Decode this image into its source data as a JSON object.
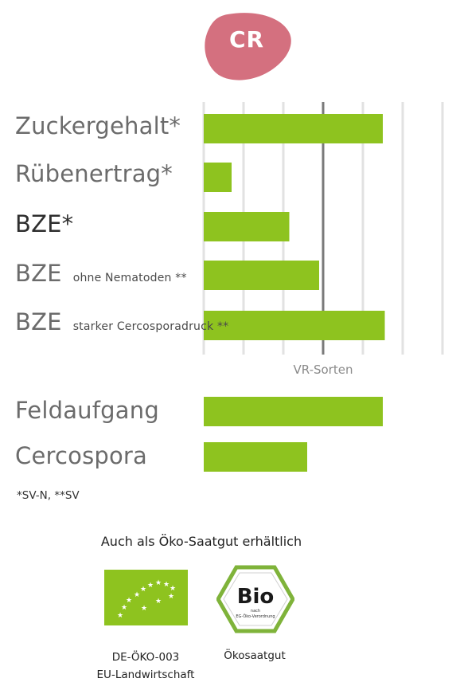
{
  "badge": {
    "label": "CR",
    "color": "#d4707f"
  },
  "chart_data": {
    "type": "bar",
    "orientation": "horizontal",
    "reference_label": "VR-Sorten",
    "bar_color": "#8ec31f",
    "group1": [
      {
        "label": "Zuckergehalt*",
        "sub": "",
        "value": 4.5,
        "bold": false
      },
      {
        "label": "Rübenertrag*",
        "sub": "",
        "value": 0.7,
        "bold": false
      },
      {
        "label": "BZE*",
        "sub": "",
        "value": 2.15,
        "bold": true
      },
      {
        "label": "BZE",
        "sub": "ohne Nematoden **",
        "value": 2.9,
        "bold": false
      },
      {
        "label": "BZE",
        "sub": "starker Cercosporadruck **",
        "value": 4.55,
        "bold": false
      }
    ],
    "group2": [
      {
        "label": "Feldaufgang",
        "sub": "",
        "value": 4.5
      },
      {
        "label": "Cercospora",
        "sub": "",
        "value": 2.6
      }
    ],
    "xlim": [
      0,
      6
    ],
    "gridlines": [
      0,
      1,
      2,
      3,
      4,
      5,
      6
    ],
    "reference_line": 3
  },
  "footnote": "*SV-N, **SV",
  "organic": {
    "title": "Auch als Öko-Saatgut erhältlich",
    "eu_caption_line1": "DE-ÖKO-003",
    "eu_caption_line2": "EU-Landwirtschaft",
    "bio_caption": "Ökosaatgut",
    "bio_logo_text": "Bio",
    "bio_logo_small1": "nach",
    "bio_logo_small2": "EG-Öko-Verordnung"
  }
}
